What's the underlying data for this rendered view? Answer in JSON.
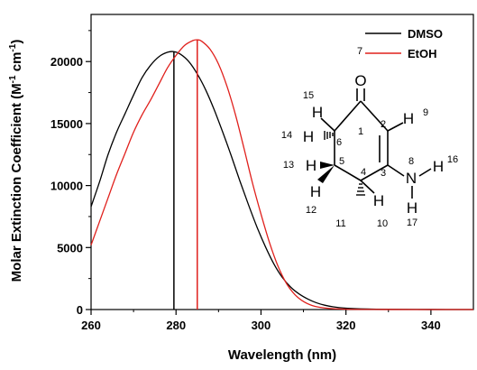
{
  "chart_data": {
    "type": "line",
    "xlabel": "Wavelength (nm)",
    "ylabel_main": "Molar Extinction Coefficient (M",
    "ylabel_sup1": "-1",
    "ylabel_mid": " cm",
    "ylabel_sup2": "-1",
    "ylabel_end": ")",
    "xlim": [
      260,
      350
    ],
    "ylim": [
      0,
      23800
    ],
    "x_ticks": [
      260,
      280,
      300,
      320,
      340
    ],
    "y_ticks": [
      0,
      5000,
      10000,
      15000,
      20000
    ],
    "legend_position": "top-right",
    "series": [
      {
        "name": "DMSO",
        "color": "#000000",
        "peak_nm": 279.5,
        "x": [
          260,
          262,
          264,
          266,
          268,
          270,
          272,
          274,
          276,
          278,
          279.5,
          281,
          283,
          285,
          287,
          289,
          291,
          293,
          295,
          297,
          299,
          301,
          303,
          305,
          307,
          309,
          311,
          313,
          315,
          317,
          320,
          325,
          330,
          340,
          350
        ],
        "values": [
          8300,
          10300,
          12500,
          14300,
          15800,
          17300,
          18700,
          19700,
          20400,
          20750,
          20800,
          20600,
          20000,
          19000,
          17700,
          16100,
          14300,
          12400,
          10400,
          8500,
          6700,
          5100,
          3700,
          2600,
          1800,
          1250,
          850,
          550,
          350,
          220,
          110,
          40,
          15,
          5,
          0
        ]
      },
      {
        "name": "EtOH",
        "color": "#e0201c",
        "peak_nm": 285,
        "x": [
          260,
          262,
          264,
          266,
          268,
          270,
          272,
          274,
          276,
          278,
          280,
          282,
          284,
          285,
          286,
          288,
          290,
          292,
          294,
          296,
          298,
          300,
          302,
          304,
          306,
          308,
          310,
          312,
          314,
          316,
          320,
          325,
          330,
          340,
          350
        ],
        "values": [
          5200,
          7100,
          9000,
          10900,
          12600,
          14300,
          15700,
          16900,
          18200,
          19500,
          20500,
          21300,
          21700,
          21750,
          21650,
          21000,
          19800,
          18000,
          15700,
          13000,
          10200,
          7700,
          5400,
          3500,
          2100,
          1200,
          650,
          330,
          170,
          90,
          30,
          10,
          5,
          0,
          0
        ]
      }
    ]
  },
  "molecule": {
    "atoms": [
      "O",
      "H",
      "H",
      "H",
      "H",
      "H",
      "H",
      "N",
      "H",
      "H"
    ],
    "numbers": [
      "7",
      "15",
      "14",
      "13",
      "12",
      "6",
      "5",
      "1",
      "2",
      "4",
      "3",
      "11",
      "10",
      "9",
      "8",
      "16",
      "17"
    ]
  }
}
